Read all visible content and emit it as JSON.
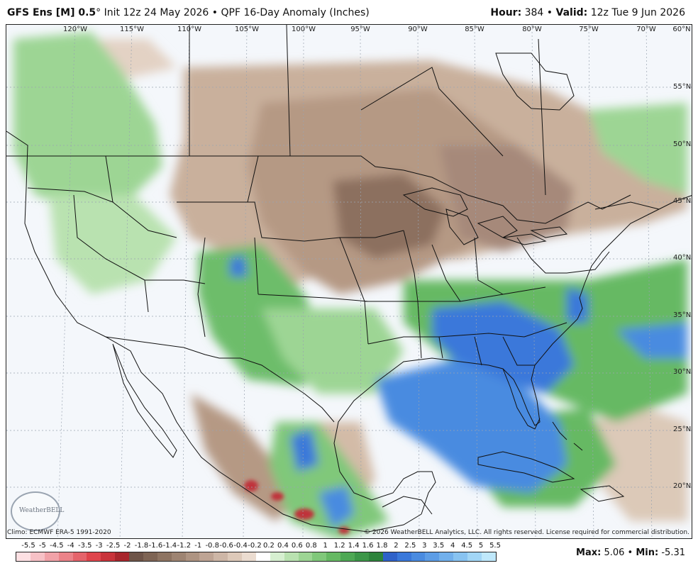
{
  "header": {
    "model": "GFS Ens [M] 0.5",
    "degree": "°",
    "init": " Init 12z 24 May 2026",
    "bullet": " • ",
    "product": "QPF 16-Day Anomaly (Inches)",
    "hour_label": "Hour:",
    "hour_value": " 384",
    "valid_label": "Valid:",
    "valid_value": " 12z Tue 9 Jun 2026"
  },
  "map": {
    "longitude_labels": [
      "120°W",
      "115°W",
      "110°W",
      "105°W",
      "100°W",
      "95°W",
      "90°W",
      "85°W",
      "80°W",
      "75°W",
      "70°W",
      "60°N"
    ],
    "latitude_labels": [
      "55°N",
      "50°N",
      "45°N",
      "40°N",
      "35°N",
      "30°N",
      "25°N",
      "20°N"
    ],
    "logo_text": "WeatherBELL",
    "colors": {
      "land_base": "#f4f7fb",
      "dry_strong": "#8c6f5e",
      "dry_moderate": "#b59984",
      "dry_light": "#dcc9b8",
      "wet_light": "#b9e2b0",
      "wet_moderate": "#6dbd6a",
      "wet_strong": "#3b9a4a",
      "very_wet": "#4a8be0",
      "extreme_wet": "#2f62c9",
      "extreme_dry": "#c0323a",
      "borders": "#111111"
    }
  },
  "footer": {
    "climo": "Climo: ECMWF ERA-5 1991-2020",
    "copyright": "© 2026 WeatherBELL Analytics, LLC. All rights reserved. License required for commercial distribution."
  },
  "legend": {
    "labels": [
      "-5.5",
      "-5",
      "-4.5",
      "-4",
      "-3.5",
      "-3",
      "-2.5",
      "-2",
      "-1.8",
      "-1.6",
      "-1.4",
      "-1.2",
      "-1",
      "-0.8",
      "-0.6",
      "-0.4",
      "-0.2",
      "0.2",
      "0.4",
      "0.6",
      "0.8",
      "1",
      "1.2",
      "1.4",
      "1.6",
      "1.8",
      "2",
      "2.5",
      "3",
      "3.5",
      "4",
      "4.5",
      "5",
      "5.5"
    ],
    "colors": [
      "#fde0e3",
      "#f7c1c6",
      "#f1a2a8",
      "#eb8389",
      "#e5646b",
      "#df454c",
      "#c9333a",
      "#a8262c",
      "#6e5448",
      "#7e6454",
      "#8e7462",
      "#9e8472",
      "#ae9482",
      "#bea494",
      "#cdb6a6",
      "#ddc9b9",
      "#ebdcd0",
      "#ffffff",
      "#d6efd0",
      "#b9e2b0",
      "#9dd594",
      "#80c87a",
      "#66b963",
      "#4ea854",
      "#3c9648",
      "#2e833c",
      "#2f62c9",
      "#3a78da",
      "#4a8be0",
      "#5d9de6",
      "#72b0ec",
      "#88c3f1",
      "#a2d6f6",
      "#bfe8fb"
    ],
    "max_label": "Max:",
    "max_value": " 5.06",
    "sep": " • ",
    "min_label": "Min:",
    "min_value": " -5.31"
  }
}
